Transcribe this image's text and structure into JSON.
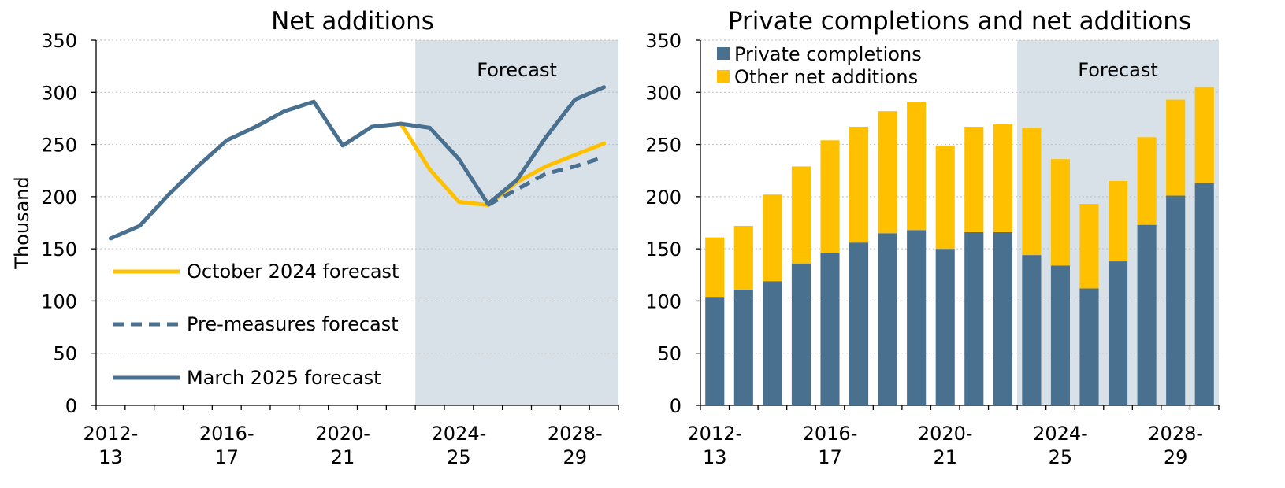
{
  "chart_data": [
    {
      "type": "line",
      "title": "Net additions",
      "ylabel": "Thousand",
      "ylim": [
        0,
        350
      ],
      "yticks": [
        "0",
        "50",
        "100",
        "150",
        "200",
        "250",
        "300",
        "350"
      ],
      "x": [
        "2012-13",
        "2013-14",
        "2014-15",
        "2015-16",
        "2016-17",
        "2017-18",
        "2018-19",
        "2019-20",
        "2020-21",
        "2021-22",
        "2022-23",
        "2023-24",
        "2024-25",
        "2025-26",
        "2026-27",
        "2027-28",
        "2028-29",
        "2029-30"
      ],
      "xtick_labels": [
        {
          "line1": "2012-",
          "line2": "13"
        },
        {
          "line1": "2016-",
          "line2": "17"
        },
        {
          "line1": "2020-",
          "line2": "21"
        },
        {
          "line1": "2024-",
          "line2": "25"
        },
        {
          "line1": "2028-",
          "line2": "29"
        }
      ],
      "forecast_label": "Forecast",
      "forecast_start": "2023-24",
      "series": [
        {
          "name": "October 2024 forecast",
          "color": "#ffc000",
          "dash": false,
          "values": [
            null,
            null,
            null,
            null,
            null,
            null,
            null,
            null,
            null,
            null,
            270,
            226,
            195,
            192,
            214,
            229,
            240,
            251
          ]
        },
        {
          "name": "Pre-measures forecast",
          "color": "#4a7090",
          "dash": true,
          "values": [
            null,
            null,
            null,
            null,
            null,
            null,
            null,
            null,
            null,
            null,
            null,
            null,
            null,
            192,
            207,
            222,
            229,
            238
          ]
        },
        {
          "name": "March 2025 forecast",
          "color": "#4a7090",
          "dash": false,
          "values": [
            160,
            172,
            202,
            229,
            254,
            267,
            282,
            291,
            249,
            267,
            270,
            266,
            236,
            193,
            216,
            257,
            293,
            305
          ]
        }
      ]
    },
    {
      "type": "bar",
      "stacked": true,
      "title": "Private completions and net additions",
      "ylim": [
        0,
        350
      ],
      "yticks": [
        "0",
        "50",
        "100",
        "150",
        "200",
        "250",
        "300",
        "350"
      ],
      "categories": [
        "2012-13",
        "2013-14",
        "2014-15",
        "2015-16",
        "2016-17",
        "2017-18",
        "2018-19",
        "2019-20",
        "2020-21",
        "2021-22",
        "2022-23",
        "2023-24",
        "2024-25",
        "2025-26",
        "2026-27",
        "2027-28",
        "2028-29",
        "2029-30"
      ],
      "xtick_labels": [
        {
          "line1": "2012-",
          "line2": "13"
        },
        {
          "line1": "2016-",
          "line2": "17"
        },
        {
          "line1": "2020-",
          "line2": "21"
        },
        {
          "line1": "2024-",
          "line2": "25"
        },
        {
          "line1": "2028-",
          "line2": "29"
        }
      ],
      "forecast_label": "Forecast",
      "forecast_start": "2023-24",
      "series": [
        {
          "name": "Private completions",
          "color": "#4a7090",
          "values": [
            104,
            111,
            119,
            136,
            146,
            156,
            165,
            168,
            150,
            166,
            166,
            144,
            134,
            112,
            138,
            173,
            201,
            213
          ]
        },
        {
          "name": "Other net additions",
          "color": "#ffc000",
          "values": [
            57,
            61,
            83,
            93,
            108,
            111,
            117,
            123,
            99,
            101,
            104,
            122,
            102,
            81,
            77,
            84,
            92,
            92
          ]
        }
      ]
    }
  ],
  "colors": {
    "forecast_shade": "#d9e1e8"
  }
}
